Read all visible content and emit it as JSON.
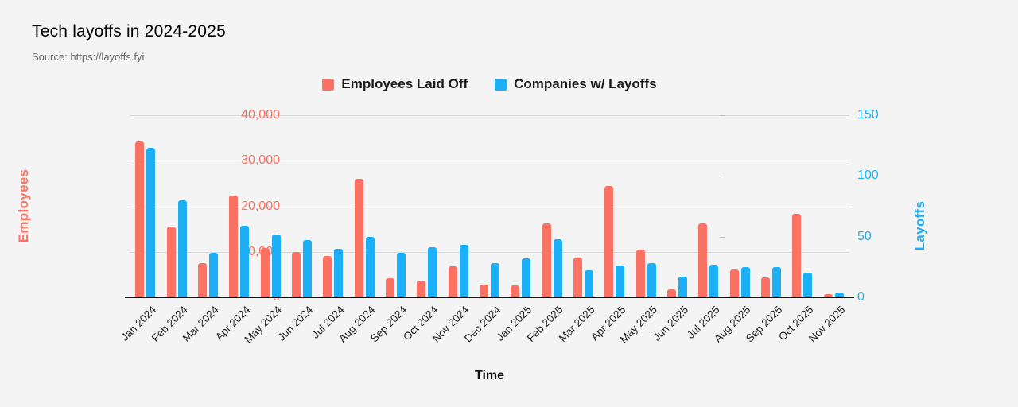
{
  "page": {
    "background": "#f4f4f4"
  },
  "header": {
    "title": "Tech layoffs in 2024-2025",
    "source": "Source: https://layoffs.fyi"
  },
  "chart_data": {
    "type": "bar",
    "title": "Tech layoffs in 2024-2025",
    "subtitle": "Source: https://layoffs.fyi",
    "xlabel": "Time",
    "legend_position": "top-center",
    "grid": true,
    "colors": {
      "employees": "#fb7163",
      "companies": "#1caff6",
      "gridline": "#d9d9d9",
      "baseline": "#111111",
      "background": "#f4f4f4"
    },
    "categories": [
      "Jan 2024",
      "Feb 2024",
      "Mar 2024",
      "Apr 2024",
      "May 2024",
      "Jun 2024",
      "Jul 2024",
      "Aug 2024",
      "Sep 2024",
      "Oct 2024",
      "Nov 2024",
      "Dec 2024",
      "Jan 2025",
      "Feb 2025",
      "Mar 2025",
      "Apr 2025",
      "May 2025",
      "Jun 2025",
      "Jul 2025",
      "Aug 2025",
      "Sep 2025",
      "Oct 2025",
      "Nov 2025"
    ],
    "series": [
      {
        "name": "Employees Laid Off",
        "axis": "left",
        "color": "#fb7163",
        "values": [
          34300,
          15600,
          7500,
          22400,
          10900,
          10000,
          9100,
          26000,
          4200,
          3700,
          6800,
          2800,
          2700,
          16200,
          8800,
          24400,
          10500,
          1800,
          16300,
          6100,
          4300,
          18300,
          700
        ]
      },
      {
        "name": "Companies w/ Layoffs",
        "axis": "right",
        "color": "#1caff6",
        "values": [
          123,
          80,
          37,
          59,
          52,
          47,
          40,
          50,
          37,
          41,
          43,
          28,
          32,
          48,
          22,
          26,
          28,
          17,
          27,
          25,
          25,
          20,
          4
        ]
      }
    ],
    "axes": {
      "left": {
        "label": "Employees",
        "min": 0,
        "max": 40000,
        "tick_step": 10000,
        "tick_labels": [
          "0",
          "10,000",
          "20,000",
          "30,000",
          "40,000"
        ]
      },
      "right": {
        "label": "Layoffs",
        "min": 0,
        "max": 150,
        "tick_step": 50,
        "tick_labels": [
          "0",
          "50",
          "100",
          "150"
        ]
      }
    }
  }
}
